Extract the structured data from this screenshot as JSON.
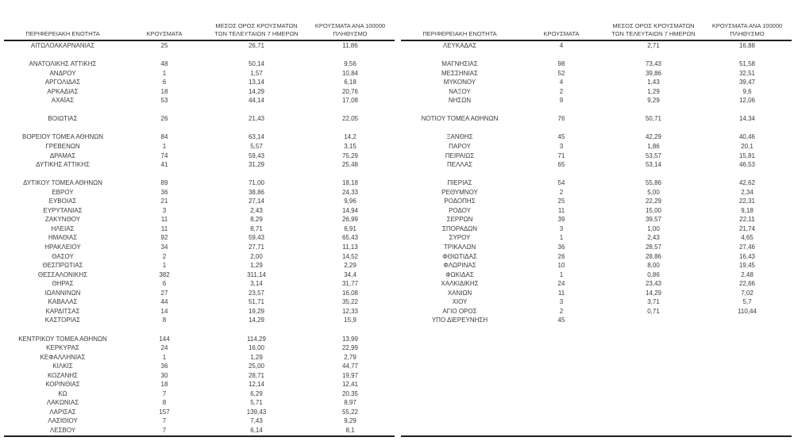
{
  "colors": {
    "text": "#3b3b3b",
    "border": "#1f1f1f",
    "background": "#ffffff"
  },
  "columns": [
    {
      "name": "region",
      "lines": [
        "ΠΕΡΙΦΕΡΕΙΑΚΗ ΕΝΟΤΗΤΑ"
      ]
    },
    {
      "name": "cases",
      "lines": [
        "ΚΡΟΥΣΜΑΤΑ"
      ]
    },
    {
      "name": "avg-cases-7day",
      "lines": [
        "ΜΕΣΟΣ ΟΡΟΣ ΚΡΟΥΣΜΑΤΩΝ",
        "ΤΩΝ ΤΕΛΕΥΤΑΙΩΝ 7 ΗΜΕΡΩΝ"
      ]
    },
    {
      "name": "cases-per-100k",
      "lines": [
        "ΚΡΟΥΣΜΑΤΑ ΑΝΑ 100000",
        "ΠΛΗΘΥΣΜΟ"
      ]
    }
  ],
  "tables": [
    {
      "name": "regional-cases-table-left",
      "rows": [
        [
          "ΑΙΤΩΛΟΑΚΑΡΝΑΝΙΑΣ",
          "25",
          "26,71",
          "11,86"
        ],
        [
          "",
          "",
          "",
          ""
        ],
        [
          "ΑΝΑΤΟΛΙΚΗΣ ΑΤΤΙΚΗΣ",
          "48",
          "50,14",
          "9,56"
        ],
        [
          "ΑΝΔΡΟΥ",
          "1",
          "1,57",
          "10,84"
        ],
        [
          "ΑΡΓΟΛΙΔΑΣ",
          "6",
          "13,14",
          "6,18"
        ],
        [
          "ΑΡΚΑΔΙΑΣ",
          "18",
          "14,29",
          "20,76"
        ],
        [
          "ΑΧΑΪΑΣ",
          "53",
          "44,14",
          "17,08"
        ],
        [
          "",
          "",
          "",
          ""
        ],
        [
          "ΒΟΙΩΤΙΑΣ",
          "26",
          "21,43",
          "22,05"
        ],
        [
          "",
          "",
          "",
          ""
        ],
        [
          "ΒΟΡΕΙΟΥ ΤΟΜΕΑ ΑΘΗΝΩΝ",
          "84",
          "63,14",
          "14,2"
        ],
        [
          "ΓΡΕΒΕΝΩΝ",
          "1",
          "5,57",
          "3,15"
        ],
        [
          "ΔΡΑΜΑΣ",
          "74",
          "59,43",
          "75,29"
        ],
        [
          "ΔΥΤΙΚΗΣ ΑΤΤΙΚΗΣ",
          "41",
          "31,29",
          "25,48"
        ],
        [
          "",
          "",
          "",
          ""
        ],
        [
          "ΔΥΤΙΚΟΥ ΤΟΜΕΑ ΑΘΗΝΩΝ",
          "89",
          "71,00",
          "18,18"
        ],
        [
          "ΕΒΡΟΥ",
          "36",
          "38,86",
          "24,33"
        ],
        [
          "ΕΥΒΟΙΑΣ",
          "21",
          "27,14",
          "9,96"
        ],
        [
          "ΕΥΡΥΤΑΝΙΑΣ",
          "3",
          "2,43",
          "14,94"
        ],
        [
          "ΖΑΚΥΝΘΟΥ",
          "11",
          "8,29",
          "26,99"
        ],
        [
          "ΗΛΕΙΑΣ",
          "11",
          "8,71",
          "6,91"
        ],
        [
          "ΗΜΑΘΙΑΣ",
          "92",
          "59,43",
          "65,43"
        ],
        [
          "ΗΡΑΚΛΕΙΟΥ",
          "34",
          "27,71",
          "11,13"
        ],
        [
          "ΘΑΣΟΥ",
          "2",
          "2,00",
          "14,52"
        ],
        [
          "ΘΕΣΠΡΩΤΙΑΣ",
          "1",
          "1,29",
          "2,29"
        ],
        [
          "ΘΕΣΣΑΛΟΝΙΚΗΣ",
          "382",
          "311,14",
          "34,4"
        ],
        [
          "ΘΗΡΑΣ",
          "6",
          "3,14",
          "31,77"
        ],
        [
          "ΙΩΑΝΝΙΝΩΝ",
          "27",
          "23,57",
          "16,08"
        ],
        [
          "ΚΑΒΑΛΑΣ",
          "44",
          "51,71",
          "35,22"
        ],
        [
          "ΚΑΡΔΙΤΣΑΣ",
          "14",
          "19,29",
          "12,33"
        ],
        [
          "ΚΑΣΤΟΡΙΑΣ",
          "8",
          "14,29",
          "15,9"
        ],
        [
          "",
          "",
          "",
          ""
        ],
        [
          "ΚΕΝΤΡΙΚΟΥ ΤΟΜΕΑ ΑΘΗΝΩΝ",
          "144",
          "114,29",
          "13,99"
        ],
        [
          "ΚΕΡΚΥΡΑΣ",
          "24",
          "16,00",
          "22,99"
        ],
        [
          "ΚΕΦΑΛΛΗΝΙΑΣ",
          "1",
          "1,29",
          "2,79"
        ],
        [
          "ΚΙΛΚΙΣ",
          "36",
          "25,00",
          "44,77"
        ],
        [
          "ΚΟΖΑΝΗΣ",
          "30",
          "28,71",
          "19,97"
        ],
        [
          "ΚΟΡΙΝΘΙΑΣ",
          "18",
          "12,14",
          "12,41"
        ],
        [
          "ΚΩ",
          "7",
          "6,29",
          "20,35"
        ],
        [
          "ΛΑΚΩΝΙΑΣ",
          "8",
          "5,71",
          "8,97"
        ],
        [
          "ΛΑΡΙΣΑΣ",
          "157",
          "139,43",
          "55,22"
        ],
        [
          "ΛΑΣΙΘΙΟΥ",
          "7",
          "7,43",
          "9,29"
        ],
        [
          "ΛΕΣΒΟΥ",
          "7",
          "6,14",
          "8,1"
        ]
      ]
    },
    {
      "name": "regional-cases-table-right",
      "rows": [
        [
          "ΛΕΥΚΑΔΑΣ",
          "4",
          "2,71",
          "16,88"
        ],
        [
          "",
          "",
          "",
          ""
        ],
        [
          "ΜΑΓΝΗΣΙΑΣ",
          "98",
          "73,43",
          "51,58"
        ],
        [
          "ΜΕΣΣΗΝΙΑΣ",
          "52",
          "39,86",
          "32,51"
        ],
        [
          "ΜΥΚΟΝΟΥ",
          "4",
          "1,43",
          "39,47"
        ],
        [
          "ΝΑΞΟΥ",
          "2",
          "1,29",
          "9,6"
        ],
        [
          "ΝΗΣΩΝ",
          "9",
          "9,29",
          "12,06"
        ],
        [
          "",
          "",
          "",
          ""
        ],
        [
          "ΝΟΤΙΟΥ ΤΟΜΕΑ ΑΘΗΝΩΝ",
          "76",
          "50,71",
          "14,34"
        ],
        [
          "",
          "",
          "",
          ""
        ],
        [
          "ΞΑΝΘΗΣ",
          "45",
          "42,29",
          "40,46"
        ],
        [
          "ΠΑΡΟΥ",
          "3",
          "1,86",
          "20,1"
        ],
        [
          "ΠΕΙΡΑΙΩΣ",
          "71",
          "53,57",
          "15,81"
        ],
        [
          "ΠΕΛΛΑΣ",
          "65",
          "53,14",
          "46,53"
        ],
        [
          "",
          "",
          "",
          ""
        ],
        [
          "ΠΙΕΡΙΑΣ",
          "54",
          "55,86",
          "42,62"
        ],
        [
          "ΡΕΘΥΜΝΟΥ",
          "2",
          "5,00",
          "2,34"
        ],
        [
          "ΡΟΔΟΠΗΣ",
          "25",
          "22,29",
          "22,31"
        ],
        [
          "ΡΟΔΟΥ",
          "11",
          "15,00",
          "9,18"
        ],
        [
          "ΣΕΡΡΩΝ",
          "39",
          "39,57",
          "22,11"
        ],
        [
          "ΣΠΟΡΑΔΩΝ",
          "3",
          "1,00",
          "21,74"
        ],
        [
          "ΣΥΡΟΥ",
          "1",
          "2,43",
          "4,65"
        ],
        [
          "ΤΡΙΚΑΛΩΝ",
          "36",
          "28,57",
          "27,46"
        ],
        [
          "ΦΘΙΩΤΙΔΑΣ",
          "26",
          "28,86",
          "16,43"
        ],
        [
          "ΦΛΩΡΙΝΑΣ",
          "10",
          "8,00",
          "19,45"
        ],
        [
          "ΦΩΚΙΔΑΣ",
          "1",
          "0,86",
          "2,48"
        ],
        [
          "ΧΑΛΚΙΔΙΚΗΣ",
          "24",
          "23,43",
          "22,66"
        ],
        [
          "ΧΑΝΙΩΝ",
          "11",
          "14,29",
          "7,02"
        ],
        [
          "ΧΙΟΥ",
          "3",
          "3,71",
          "5,7"
        ],
        [
          "ΑΓΙΟ ΟΡΟΣ",
          "2",
          "0,71",
          "110,44"
        ],
        [
          "ΥΠΟ ΔΙΕΡΕΥΝΗΣΗ",
          "45",
          "",
          ""
        ],
        [
          "",
          "",
          "",
          ""
        ],
        [
          "",
          "",
          "",
          ""
        ],
        [
          "",
          "",
          "",
          ""
        ],
        [
          "",
          "",
          "",
          ""
        ],
        [
          "",
          "",
          "",
          ""
        ],
        [
          "",
          "",
          "",
          ""
        ],
        [
          "",
          "",
          "",
          ""
        ],
        [
          "",
          "",
          "",
          ""
        ],
        [
          "",
          "",
          "",
          ""
        ],
        [
          "",
          "",
          "",
          ""
        ],
        [
          "",
          "",
          "",
          ""
        ],
        [
          "",
          "",
          "",
          ""
        ]
      ]
    }
  ]
}
